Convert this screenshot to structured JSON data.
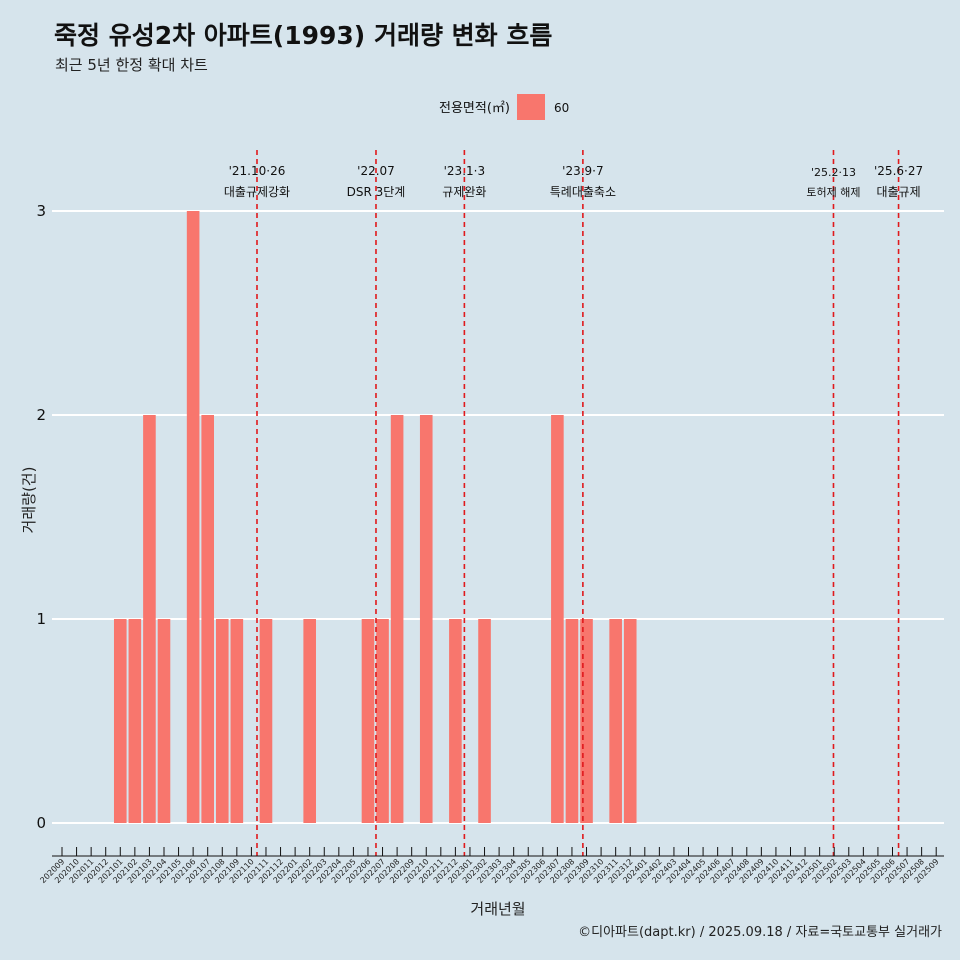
{
  "title": "죽정 유성2차 아파트(1993) 거래량 변화 흐름",
  "subtitle": "최근 5년 한정 확대 차트",
  "caption": "©디아파트(dapt.kr) / 2025.09.18 / 자료=국토교통부 실거래가",
  "colors": {
    "bar": "#f8766d",
    "background": "#d6e4ec",
    "grid": "#ffffff",
    "event_line": "#e0191c"
  },
  "chart_data": {
    "type": "bar",
    "xlabel": "거래년월",
    "ylabel": "거래량(건)",
    "ylim": [
      0,
      3
    ],
    "yticks": [
      0,
      1,
      2,
      3
    ],
    "legend": {
      "title": "전용면적(㎡)",
      "placement": "top",
      "entries": [
        "60"
      ]
    },
    "categories": [
      "202009",
      "202010",
      "202011",
      "202012",
      "202101",
      "202102",
      "202103",
      "202104",
      "202105",
      "202106",
      "202107",
      "202108",
      "202109",
      "202110",
      "202111",
      "202112",
      "202201",
      "202202",
      "202203",
      "202204",
      "202205",
      "202206",
      "202207",
      "202208",
      "202209",
      "202210",
      "202211",
      "202212",
      "202301",
      "202302",
      "202303",
      "202304",
      "202305",
      "202306",
      "202307",
      "202308",
      "202309",
      "202310",
      "202311",
      "202312",
      "202401",
      "202402",
      "202403",
      "202404",
      "202405",
      "202406",
      "202407",
      "202408",
      "202409",
      "202410",
      "202411",
      "202412",
      "202501",
      "202502",
      "202503",
      "202504",
      "202505",
      "202506",
      "202507",
      "202508",
      "202509"
    ],
    "series": [
      {
        "name": "60",
        "values": [
          0,
          0,
          0,
          0,
          1,
          1,
          2,
          1,
          0,
          3,
          2,
          1,
          1,
          0,
          1,
          0,
          0,
          1,
          0,
          0,
          0,
          1,
          1,
          2,
          0,
          2,
          0,
          1,
          0,
          1,
          0,
          0,
          0,
          0,
          2,
          1,
          1,
          0,
          1,
          1,
          0,
          0,
          0,
          0,
          0,
          0,
          0,
          0,
          0,
          0,
          0,
          0,
          0,
          0,
          0,
          0,
          0,
          0,
          0,
          0,
          0
        ]
      }
    ],
    "annotations": [
      {
        "date": "'21.10·26",
        "label": "대출규제강화",
        "x_month": "202110",
        "x_day": 26,
        "small": false
      },
      {
        "date": "'22.07",
        "label": "DSR 3단계",
        "x_month": "202207",
        "x_day": 1,
        "small": false
      },
      {
        "date": "'23.1·3",
        "label": "규제완화",
        "x_month": "202301",
        "x_day": 3,
        "small": false
      },
      {
        "date": "'23.9·7",
        "label": "특례대출축소",
        "x_month": "202309",
        "x_day": 7,
        "small": false
      },
      {
        "date": "'25.2·13",
        "label": "토허제 해제",
        "x_month": "202502",
        "x_day": 13,
        "small": true
      },
      {
        "date": "'25.6·27",
        "label": "대출규제",
        "x_month": "202506",
        "x_day": 27,
        "small": false
      }
    ]
  }
}
